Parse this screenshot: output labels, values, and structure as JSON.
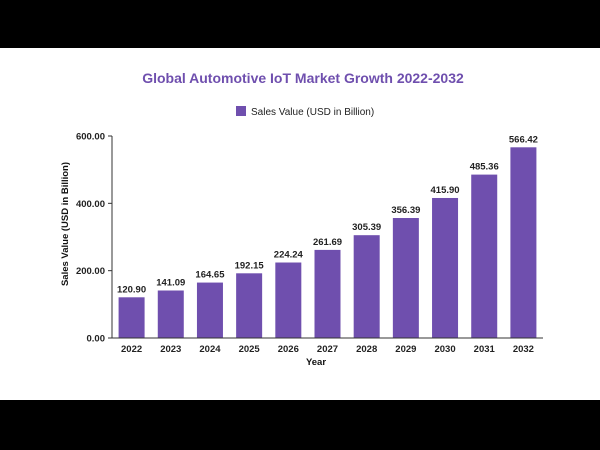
{
  "colors": {
    "bar": "#6f4fae",
    "title": "#6f4fae",
    "first_label": "#1f4e5a",
    "axis": "#333333"
  },
  "chart_data": {
    "type": "bar",
    "title": "Global Automotive IoT Market Growth 2022-2032",
    "xlabel": "Year",
    "ylabel": "Sales Value (USD in Billion)",
    "legend": {
      "position": "top",
      "entries": [
        "Sales Value (USD in Billion)"
      ]
    },
    "ylim": [
      0,
      600
    ],
    "yticks": [
      "0.00",
      "200.00",
      "400.00",
      "600.00"
    ],
    "categories": [
      "2022",
      "2023",
      "2024",
      "2025",
      "2026",
      "2027",
      "2028",
      "2029",
      "2030",
      "2031",
      "2032"
    ],
    "series": [
      {
        "name": "Sales Value (USD in Billion)",
        "values": [
          120.9,
          141.09,
          164.65,
          192.15,
          224.24,
          261.69,
          305.39,
          356.39,
          415.9,
          485.36,
          566.42
        ],
        "labels": [
          "120.90",
          "141.09",
          "164.65",
          "192.15",
          "224.24",
          "261.69",
          "305.39",
          "356.39",
          "415.90",
          "485.36",
          "566.42"
        ]
      }
    ],
    "grid": false
  }
}
